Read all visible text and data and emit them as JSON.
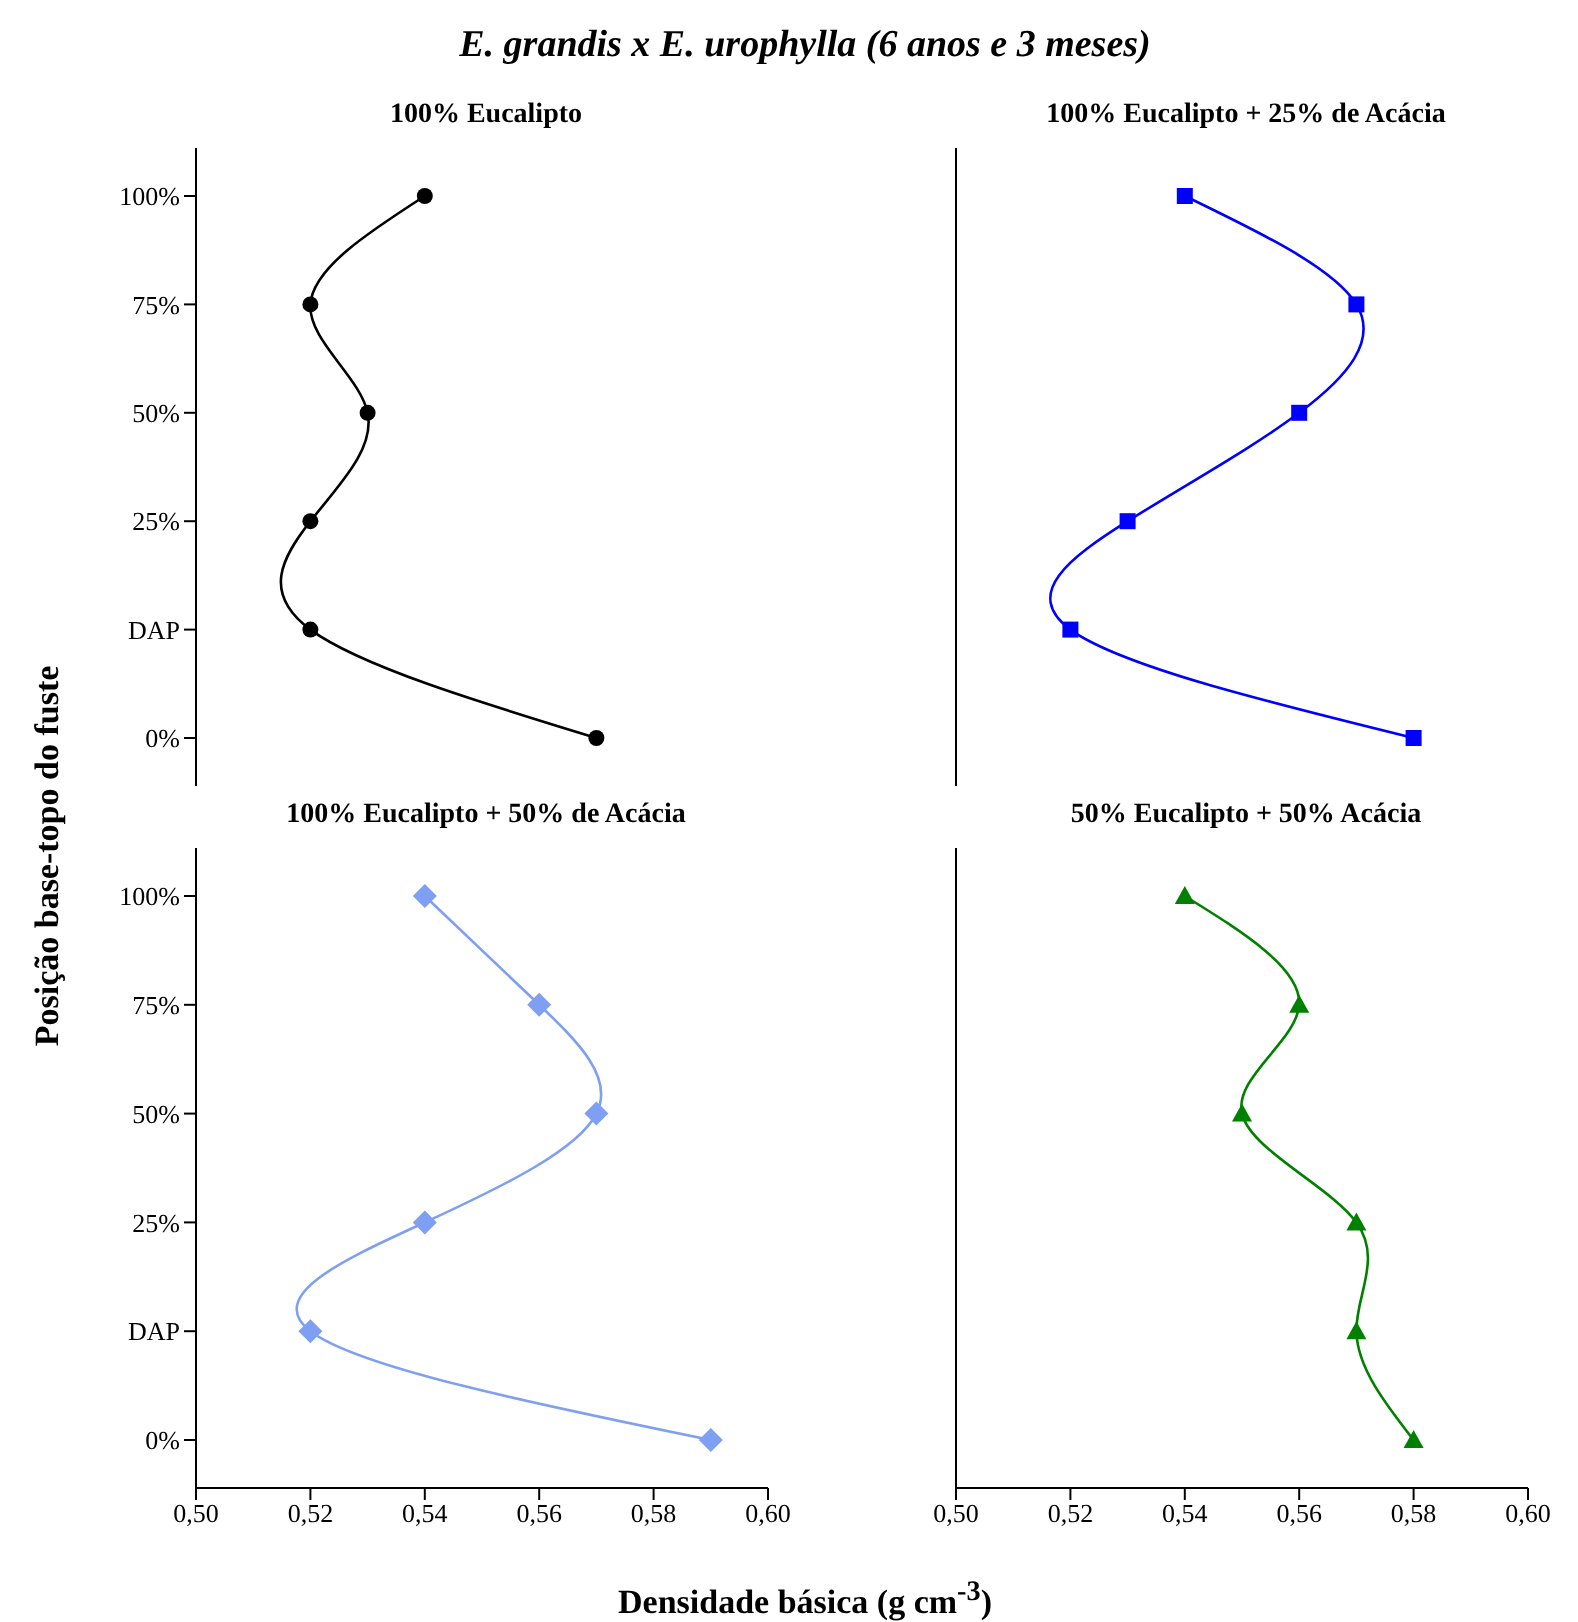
{
  "chart_data": [
    {
      "type": "line",
      "title": "E. grandis x E. urophylla (6 anos e 3 meses)",
      "subtitle": "100% Eucalipto",
      "ylabel": "Posição base-topo do fuste",
      "orientation": "horizontal",
      "categories": [
        "100%",
        "75%",
        "50%",
        "25%",
        "DAP",
        "0%"
      ],
      "series": [
        {
          "color": "#000000",
          "values": [
            0.54,
            0.52,
            0.53,
            0.52,
            0.52,
            0.57
          ]
        }
      ],
      "xlim": [
        0.5,
        0.6
      ],
      "marker": "circle",
      "tick_labels": "y"
    },
    {
      "type": "line",
      "subtitle": "100% Eucalipto + 25% de Acácia",
      "orientation": "horizontal",
      "categories": [
        null,
        null,
        null,
        null,
        null,
        null
      ],
      "series": [
        {
          "color": "#0000ff",
          "values": [
            0.54,
            0.57,
            0.56,
            0.53,
            0.52,
            0.58
          ]
        }
      ],
      "xlim": [
        0.5,
        0.6
      ],
      "marker": "square",
      "tick_labels": false
    },
    {
      "type": "line",
      "subtitle": "100% Eucalipto + 50% de Acácia",
      "xlabel": "Densidade básica (g cm$^{-3}$)",
      "orientation": "horizontal",
      "categories": [
        "100%",
        "75%",
        "50%",
        "25%",
        "DAP",
        "0%"
      ],
      "series": [
        {
          "color": "#7f9ff2",
          "values": [
            0.54,
            0.56,
            0.57,
            0.54,
            0.52,
            0.59
          ]
        }
      ],
      "xlim": [
        0.5,
        0.6
      ],
      "xticks": [
        {
          "value": 0.5,
          "label": "0,50"
        },
        {
          "value": 0.52,
          "label": "0,52"
        },
        {
          "value": 0.54,
          "label": "0,54"
        },
        {
          "value": 0.56,
          "label": "0,56"
        },
        {
          "value": 0.58,
          "label": "0,58"
        },
        {
          "value": 0.6,
          "label": "0,60"
        }
      ],
      "marker": "diamond"
    },
    {
      "type": "line",
      "subtitle": "50% Eucalipto + 50% Acácia",
      "orientation": "horizontal",
      "categories": [
        null,
        null,
        null,
        null,
        null,
        null
      ],
      "series": [
        {
          "color": "#008000",
          "values": [
            0.54,
            0.56,
            0.55,
            0.57,
            0.57,
            0.58
          ]
        }
      ],
      "xlim": [
        0.5,
        0.6
      ],
      "xticks": [
        {
          "value": 0.5,
          "label": "0,50"
        },
        {
          "value": 0.52,
          "label": "0,52"
        },
        {
          "value": 0.54,
          "label": "0,54"
        },
        {
          "value": 0.56,
          "label": "0,56"
        },
        {
          "value": 0.58,
          "label": "0,58"
        },
        {
          "value": 0.6,
          "label": "0,60"
        }
      ],
      "marker": "triangle",
      "tick_labels": "x"
    }
  ]
}
